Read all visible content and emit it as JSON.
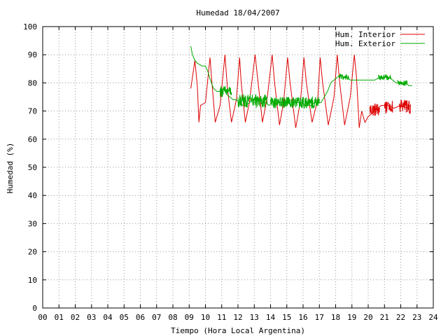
{
  "chart_data": {
    "type": "line",
    "title": "Humedad 18/04/2007",
    "xlabel": "Tiempo (Hora Local Argentina)",
    "ylabel": "Humedad (%)",
    "xlim": [
      0,
      24
    ],
    "ylim": [
      0,
      100
    ],
    "grid": true,
    "legend_position": "top-right",
    "x_ticks": [
      0,
      1,
      2,
      3,
      4,
      5,
      6,
      7,
      8,
      9,
      10,
      11,
      12,
      13,
      14,
      15,
      16,
      17,
      18,
      19,
      20,
      21,
      22,
      23,
      24
    ],
    "x_tick_labels": [
      "00",
      "01",
      "02",
      "03",
      "04",
      "05",
      "06",
      "07",
      "08",
      "09",
      "10",
      "11",
      "12",
      "13",
      "14",
      "15",
      "16",
      "17",
      "18",
      "19",
      "20",
      "21",
      "22",
      "23",
      "24"
    ],
    "y_ticks": [
      0,
      10,
      20,
      30,
      40,
      50,
      60,
      70,
      80,
      90,
      100
    ],
    "y_tick_labels": [
      "0",
      "10",
      "20",
      "30",
      "40",
      "50",
      "60",
      "70",
      "80",
      "90",
      "100"
    ],
    "series": [
      {
        "name": "Hum. Interior",
        "color": "#dd0000",
        "points": [
          [
            9.1,
            78
          ],
          [
            9.35,
            88
          ],
          [
            9.5,
            79
          ],
          [
            9.6,
            66
          ],
          [
            9.7,
            72
          ],
          [
            10.0,
            73
          ],
          [
            10.28,
            89
          ],
          [
            10.4,
            80
          ],
          [
            10.6,
            66
          ],
          [
            10.9,
            72
          ],
          [
            11.2,
            90
          ],
          [
            11.35,
            78
          ],
          [
            11.6,
            66
          ],
          [
            11.9,
            74
          ],
          [
            12.1,
            89
          ],
          [
            12.2,
            80
          ],
          [
            12.45,
            66
          ],
          [
            12.7,
            73
          ],
          [
            13.05,
            90
          ],
          [
            13.2,
            82
          ],
          [
            13.5,
            66
          ],
          [
            13.8,
            75
          ],
          [
            14.1,
            90
          ],
          [
            14.25,
            80
          ],
          [
            14.55,
            65
          ],
          [
            14.8,
            73
          ],
          [
            15.05,
            89
          ],
          [
            15.2,
            80
          ],
          [
            15.55,
            64
          ],
          [
            15.85,
            74
          ],
          [
            16.05,
            89
          ],
          [
            16.2,
            80
          ],
          [
            16.55,
            66
          ],
          [
            16.9,
            74
          ],
          [
            17.05,
            89
          ],
          [
            17.2,
            80
          ],
          [
            17.55,
            65
          ],
          [
            17.9,
            75
          ],
          [
            18.1,
            90
          ],
          [
            18.25,
            80
          ],
          [
            18.55,
            65
          ],
          [
            18.9,
            75
          ],
          [
            19.15,
            90
          ],
          [
            19.28,
            82
          ],
          [
            19.45,
            64
          ],
          [
            19.6,
            70
          ],
          [
            19.8,
            66
          ],
          [
            20.0,
            68
          ],
          [
            20.4,
            70
          ],
          [
            20.8,
            72
          ],
          [
            21.2,
            72
          ],
          [
            21.6,
            71
          ],
          [
            22.0,
            72
          ],
          [
            22.4,
            71
          ],
          [
            22.6,
            72
          ]
        ],
        "noise_bands": [
          {
            "x_start": 20.1,
            "x_end": 20.7,
            "y_low": 68,
            "y_high": 73
          },
          {
            "x_start": 21.0,
            "x_end": 21.5,
            "y_low": 69,
            "y_high": 74
          },
          {
            "x_start": 21.9,
            "x_end": 22.6,
            "y_low": 69,
            "y_high": 74
          }
        ]
      },
      {
        "name": "Hum. Exterior",
        "color": "#00aa00",
        "points": [
          [
            9.1,
            93
          ],
          [
            9.2,
            90
          ],
          [
            9.35,
            88
          ],
          [
            9.5,
            87
          ],
          [
            9.8,
            86
          ],
          [
            10.0,
            86
          ],
          [
            10.15,
            84
          ],
          [
            10.3,
            81
          ],
          [
            10.5,
            78
          ],
          [
            10.7,
            77
          ],
          [
            10.9,
            77
          ],
          [
            11.1,
            78
          ],
          [
            11.3,
            76
          ],
          [
            11.5,
            75
          ],
          [
            11.7,
            74
          ],
          [
            11.9,
            74
          ],
          [
            12.1,
            73
          ],
          [
            12.3,
            72
          ],
          [
            12.5,
            72
          ],
          [
            12.7,
            73
          ],
          [
            12.9,
            74
          ],
          [
            13.1,
            75
          ],
          [
            13.3,
            74
          ],
          [
            13.5,
            73
          ],
          [
            13.7,
            73
          ],
          [
            13.9,
            72
          ],
          [
            14.1,
            73
          ],
          [
            14.3,
            74
          ],
          [
            14.5,
            73
          ],
          [
            14.7,
            73
          ],
          [
            14.9,
            73
          ],
          [
            15.1,
            73
          ],
          [
            15.3,
            72
          ],
          [
            15.5,
            73
          ],
          [
            15.7,
            73
          ],
          [
            15.9,
            73
          ],
          [
            16.1,
            72
          ],
          [
            16.3,
            72
          ],
          [
            16.5,
            72
          ],
          [
            16.7,
            73
          ],
          [
            16.9,
            73
          ],
          [
            17.1,
            73
          ],
          [
            17.3,
            75
          ],
          [
            17.5,
            77
          ],
          [
            17.7,
            80
          ],
          [
            17.9,
            81
          ],
          [
            18.1,
            82
          ],
          [
            18.3,
            83
          ],
          [
            18.5,
            82
          ],
          [
            18.7,
            82
          ],
          [
            18.9,
            81
          ],
          [
            19.1,
            81
          ],
          [
            19.3,
            81
          ],
          [
            19.5,
            81
          ],
          [
            19.8,
            81
          ],
          [
            20.1,
            81
          ],
          [
            20.4,
            81
          ],
          [
            20.7,
            82
          ],
          [
            21.0,
            82
          ],
          [
            21.3,
            82
          ],
          [
            21.5,
            81
          ],
          [
            21.7,
            80
          ],
          [
            21.9,
            80
          ],
          [
            22.1,
            80
          ],
          [
            22.3,
            80
          ],
          [
            22.5,
            79
          ],
          [
            22.7,
            79
          ]
        ],
        "noise_bands": [
          {
            "x_start": 10.9,
            "x_end": 11.6,
            "y_low": 75,
            "y_high": 79
          },
          {
            "x_start": 12.0,
            "x_end": 13.8,
            "y_low": 71,
            "y_high": 76
          },
          {
            "x_start": 14.0,
            "x_end": 17.0,
            "y_low": 71,
            "y_high": 75
          },
          {
            "x_start": 18.2,
            "x_end": 18.8,
            "y_low": 81,
            "y_high": 83
          },
          {
            "x_start": 20.6,
            "x_end": 21.4,
            "y_low": 81,
            "y_high": 83
          },
          {
            "x_start": 21.8,
            "x_end": 22.4,
            "y_low": 79,
            "y_high": 81
          }
        ]
      }
    ]
  }
}
